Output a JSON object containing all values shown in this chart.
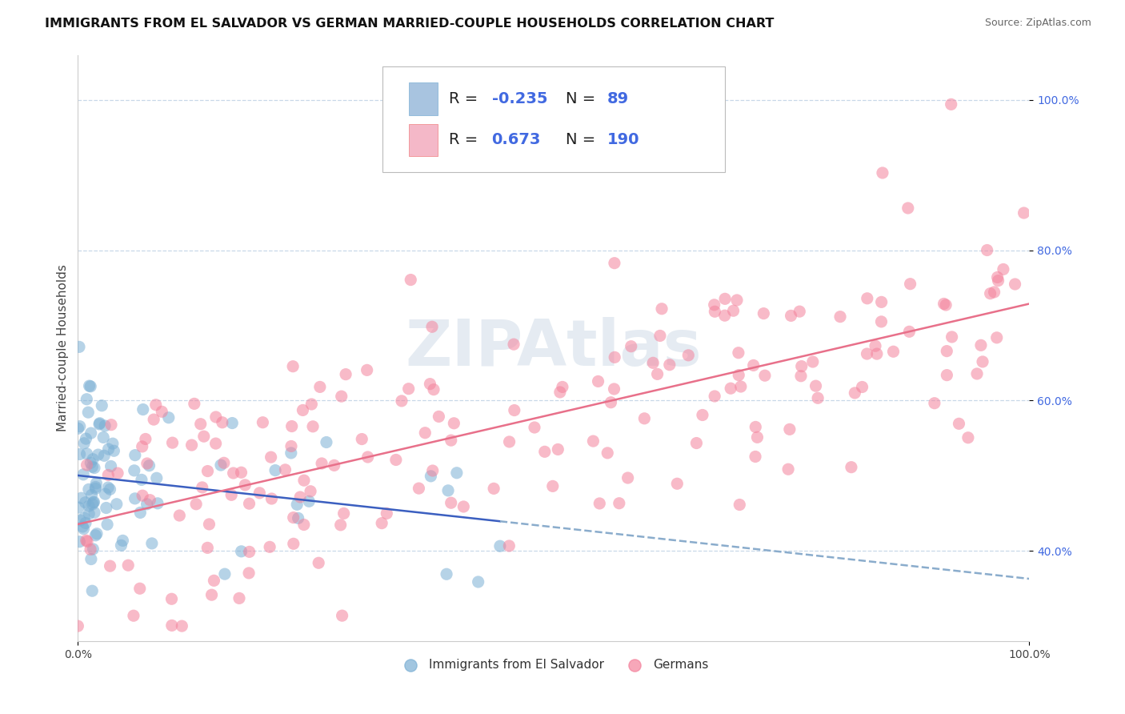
{
  "title": "IMMIGRANTS FROM EL SALVADOR VS GERMAN MARRIED-COUPLE HOUSEHOLDS CORRELATION CHART",
  "source": "Source: ZipAtlas.com",
  "ylabel": "Married-couple Households",
  "xlim": [
    0.0,
    1.0
  ],
  "ylim": [
    0.28,
    1.06
  ],
  "y_ticks": [
    0.4,
    0.6,
    0.8,
    1.0
  ],
  "y_tick_labels": [
    "40.0%",
    "60.0%",
    "80.0%",
    "100.0%"
  ],
  "x_tick_labels": [
    "0.0%",
    "100.0%"
  ],
  "scatter_color_blue": "#7bafd4",
  "scatter_color_pink": "#f4829c",
  "line_color_blue": "#3b5fc0",
  "line_color_pink": "#e8708a",
  "line_color_blue_dashed": "#8aaccc",
  "legend_color1": "#a8c4e0",
  "legend_color2": "#f4b8c8",
  "watermark": "ZIPAtlas",
  "R1": -0.235,
  "N1": 89,
  "R2": 0.673,
  "N2": 190,
  "background_color": "#ffffff",
  "grid_color": "#c8d8e8",
  "title_fontsize": 11.5,
  "axis_label_fontsize": 11,
  "tick_fontsize": 10,
  "legend_fontsize": 14,
  "marker_size": 120,
  "marker_alpha": 0.55
}
